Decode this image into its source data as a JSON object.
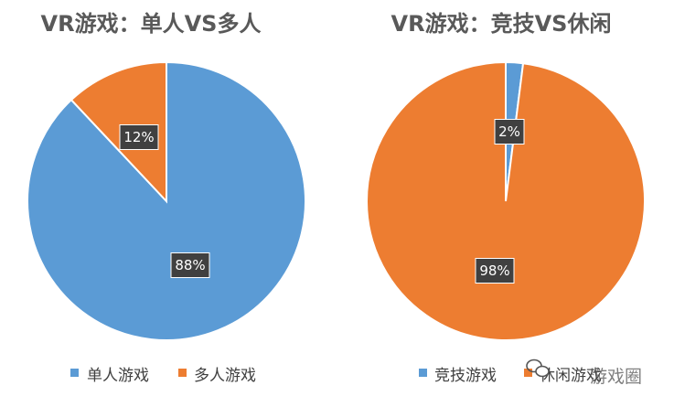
{
  "chart_data": [
    {
      "type": "pie",
      "title": "VR游戏：单人VS多人",
      "categories": [
        "单人游戏",
        "多人游戏"
      ],
      "values": [
        88,
        12
      ],
      "data_labels": [
        "88%",
        "12%"
      ],
      "colors": [
        "#5B9BD5",
        "#ED7D31"
      ],
      "legend": "bottom"
    },
    {
      "type": "pie",
      "title": "VR游戏：竞技VS休闲",
      "categories": [
        "竞技游戏",
        "休闲游戏"
      ],
      "values": [
        2,
        98
      ],
      "data_labels": [
        "2%",
        "98%"
      ],
      "colors": [
        "#5B9BD5",
        "#ED7D31"
      ],
      "legend": "bottom"
    }
  ],
  "watermark": {
    "text": "游戏圈",
    "icon": "wechat-icon"
  }
}
